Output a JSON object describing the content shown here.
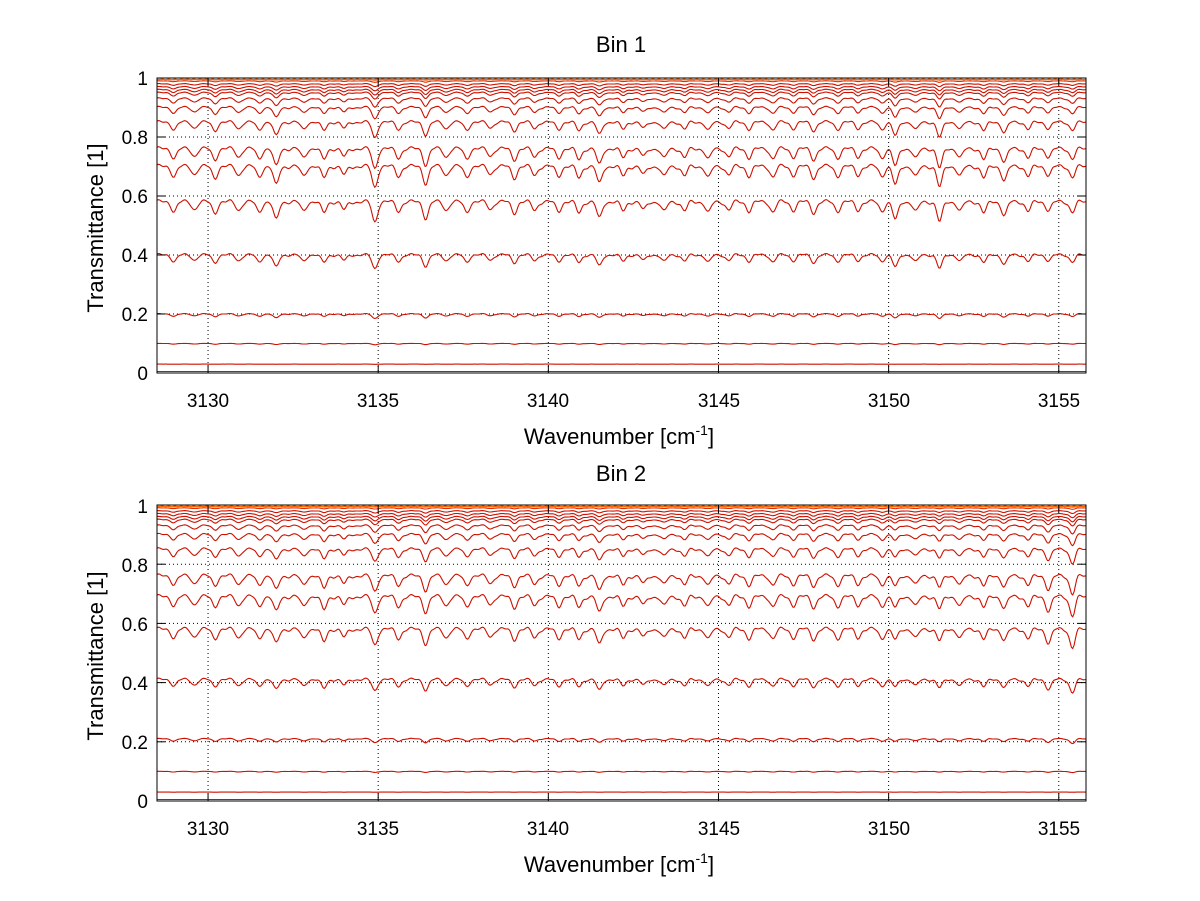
{
  "chart_data": [
    {
      "type": "line",
      "title": "Bin 1",
      "xlabel": "Wavenumber [cm",
      "xlabel_sup": "-1",
      "xlabel_end": "]",
      "ylabel": "Transmittance [1]",
      "xlim": [
        3128.5,
        3155.8
      ],
      "ylim": [
        0,
        1
      ],
      "xticks": [
        3130,
        3135,
        3140,
        3145,
        3150,
        3155
      ],
      "yticks": [
        0,
        0.2,
        0.4,
        0.6,
        0.8,
        1
      ],
      "xtick_labels": [
        "3130",
        "3135",
        "3140",
        "3145",
        "3150",
        "3155"
      ],
      "ytick_labels": [
        "0",
        "0.2",
        "0.4",
        "0.6",
        "0.8",
        "1"
      ],
      "grid": true,
      "series_baselines": [
        0.0,
        0.005,
        0.03,
        0.1,
        0.2,
        0.4,
        0.58,
        0.7,
        0.76,
        0.85,
        0.9,
        0.93,
        0.95,
        0.96,
        0.97,
        0.98,
        0.99,
        0.995,
        1.0
      ],
      "series_color": "#cc1100",
      "top_color": "#ff6a00",
      "bottom_color": "#7a0000",
      "absorption_lines": [
        3129.0,
        3129.6,
        3130.2,
        3130.9,
        3131.5,
        3132.0,
        3132.8,
        3133.4,
        3134.0,
        3134.9,
        3135.6,
        3136.4,
        3137.0,
        3137.6,
        3138.3,
        3139.0,
        3139.6,
        3140.3,
        3140.9,
        3141.5,
        3142.2,
        3142.8,
        3143.4,
        3144.0,
        3144.7,
        3145.3,
        3145.9,
        3146.6,
        3147.2,
        3147.8,
        3148.5,
        3149.1,
        3149.8,
        3150.2,
        3150.8,
        3151.5,
        3152.1,
        3152.8,
        3153.4,
        3154.1,
        3154.7,
        3155.4
      ],
      "line_depths": [
        0.1,
        0.08,
        0.12,
        0.09,
        0.11,
        0.2,
        0.1,
        0.12,
        0.09,
        0.22,
        0.1,
        0.18,
        0.09,
        0.11,
        0.08,
        0.12,
        0.09,
        0.1,
        0.12,
        0.18,
        0.1,
        0.09,
        0.11,
        0.1,
        0.12,
        0.09,
        0.1,
        0.11,
        0.09,
        0.12,
        0.1,
        0.09,
        0.1,
        0.2,
        0.11,
        0.22,
        0.1,
        0.12,
        0.15,
        0.1,
        0.09,
        0.11
      ]
    },
    {
      "type": "line",
      "title": "Bin 2",
      "xlabel": "Wavenumber [cm",
      "xlabel_sup": "-1",
      "xlabel_end": "]",
      "ylabel": "Transmittance [1]",
      "xlim": [
        3128.5,
        3155.8
      ],
      "ylim": [
        0,
        1
      ],
      "xticks": [
        3130,
        3135,
        3140,
        3145,
        3150,
        3155
      ],
      "yticks": [
        0,
        0.2,
        0.4,
        0.6,
        0.8,
        1
      ],
      "xtick_labels": [
        "3130",
        "3135",
        "3140",
        "3145",
        "3150",
        "3155"
      ],
      "ytick_labels": [
        "0",
        "0.2",
        "0.4",
        "0.6",
        "0.8",
        "1"
      ],
      "grid": true,
      "series_baselines": [
        0.0,
        0.005,
        0.03,
        0.1,
        0.21,
        0.41,
        0.58,
        0.69,
        0.76,
        0.85,
        0.9,
        0.93,
        0.95,
        0.96,
        0.97,
        0.98,
        0.99,
        0.995,
        1.0
      ],
      "series_color": "#cc1100",
      "top_color": "#ff6a00",
      "bottom_color": "#7a0000",
      "absorption_lines": [
        3129.0,
        3129.6,
        3130.2,
        3130.9,
        3131.5,
        3132.0,
        3132.8,
        3133.4,
        3134.0,
        3134.9,
        3135.6,
        3136.4,
        3137.0,
        3137.6,
        3138.3,
        3139.0,
        3139.6,
        3140.3,
        3140.9,
        3141.5,
        3142.2,
        3142.8,
        3143.4,
        3144.0,
        3144.7,
        3145.3,
        3145.9,
        3146.6,
        3147.2,
        3147.8,
        3148.5,
        3149.1,
        3149.8,
        3150.2,
        3150.8,
        3151.5,
        3152.1,
        3152.8,
        3153.4,
        3154.1,
        3154.7,
        3155.4
      ],
      "line_depths": [
        0.09,
        0.08,
        0.1,
        0.09,
        0.1,
        0.16,
        0.1,
        0.14,
        0.09,
        0.17,
        0.1,
        0.16,
        0.09,
        0.1,
        0.08,
        0.11,
        0.09,
        0.1,
        0.11,
        0.17,
        0.1,
        0.09,
        0.1,
        0.1,
        0.11,
        0.09,
        0.1,
        0.1,
        0.09,
        0.11,
        0.1,
        0.09,
        0.1,
        0.12,
        0.1,
        0.13,
        0.1,
        0.11,
        0.12,
        0.1,
        0.15,
        0.2
      ]
    }
  ]
}
